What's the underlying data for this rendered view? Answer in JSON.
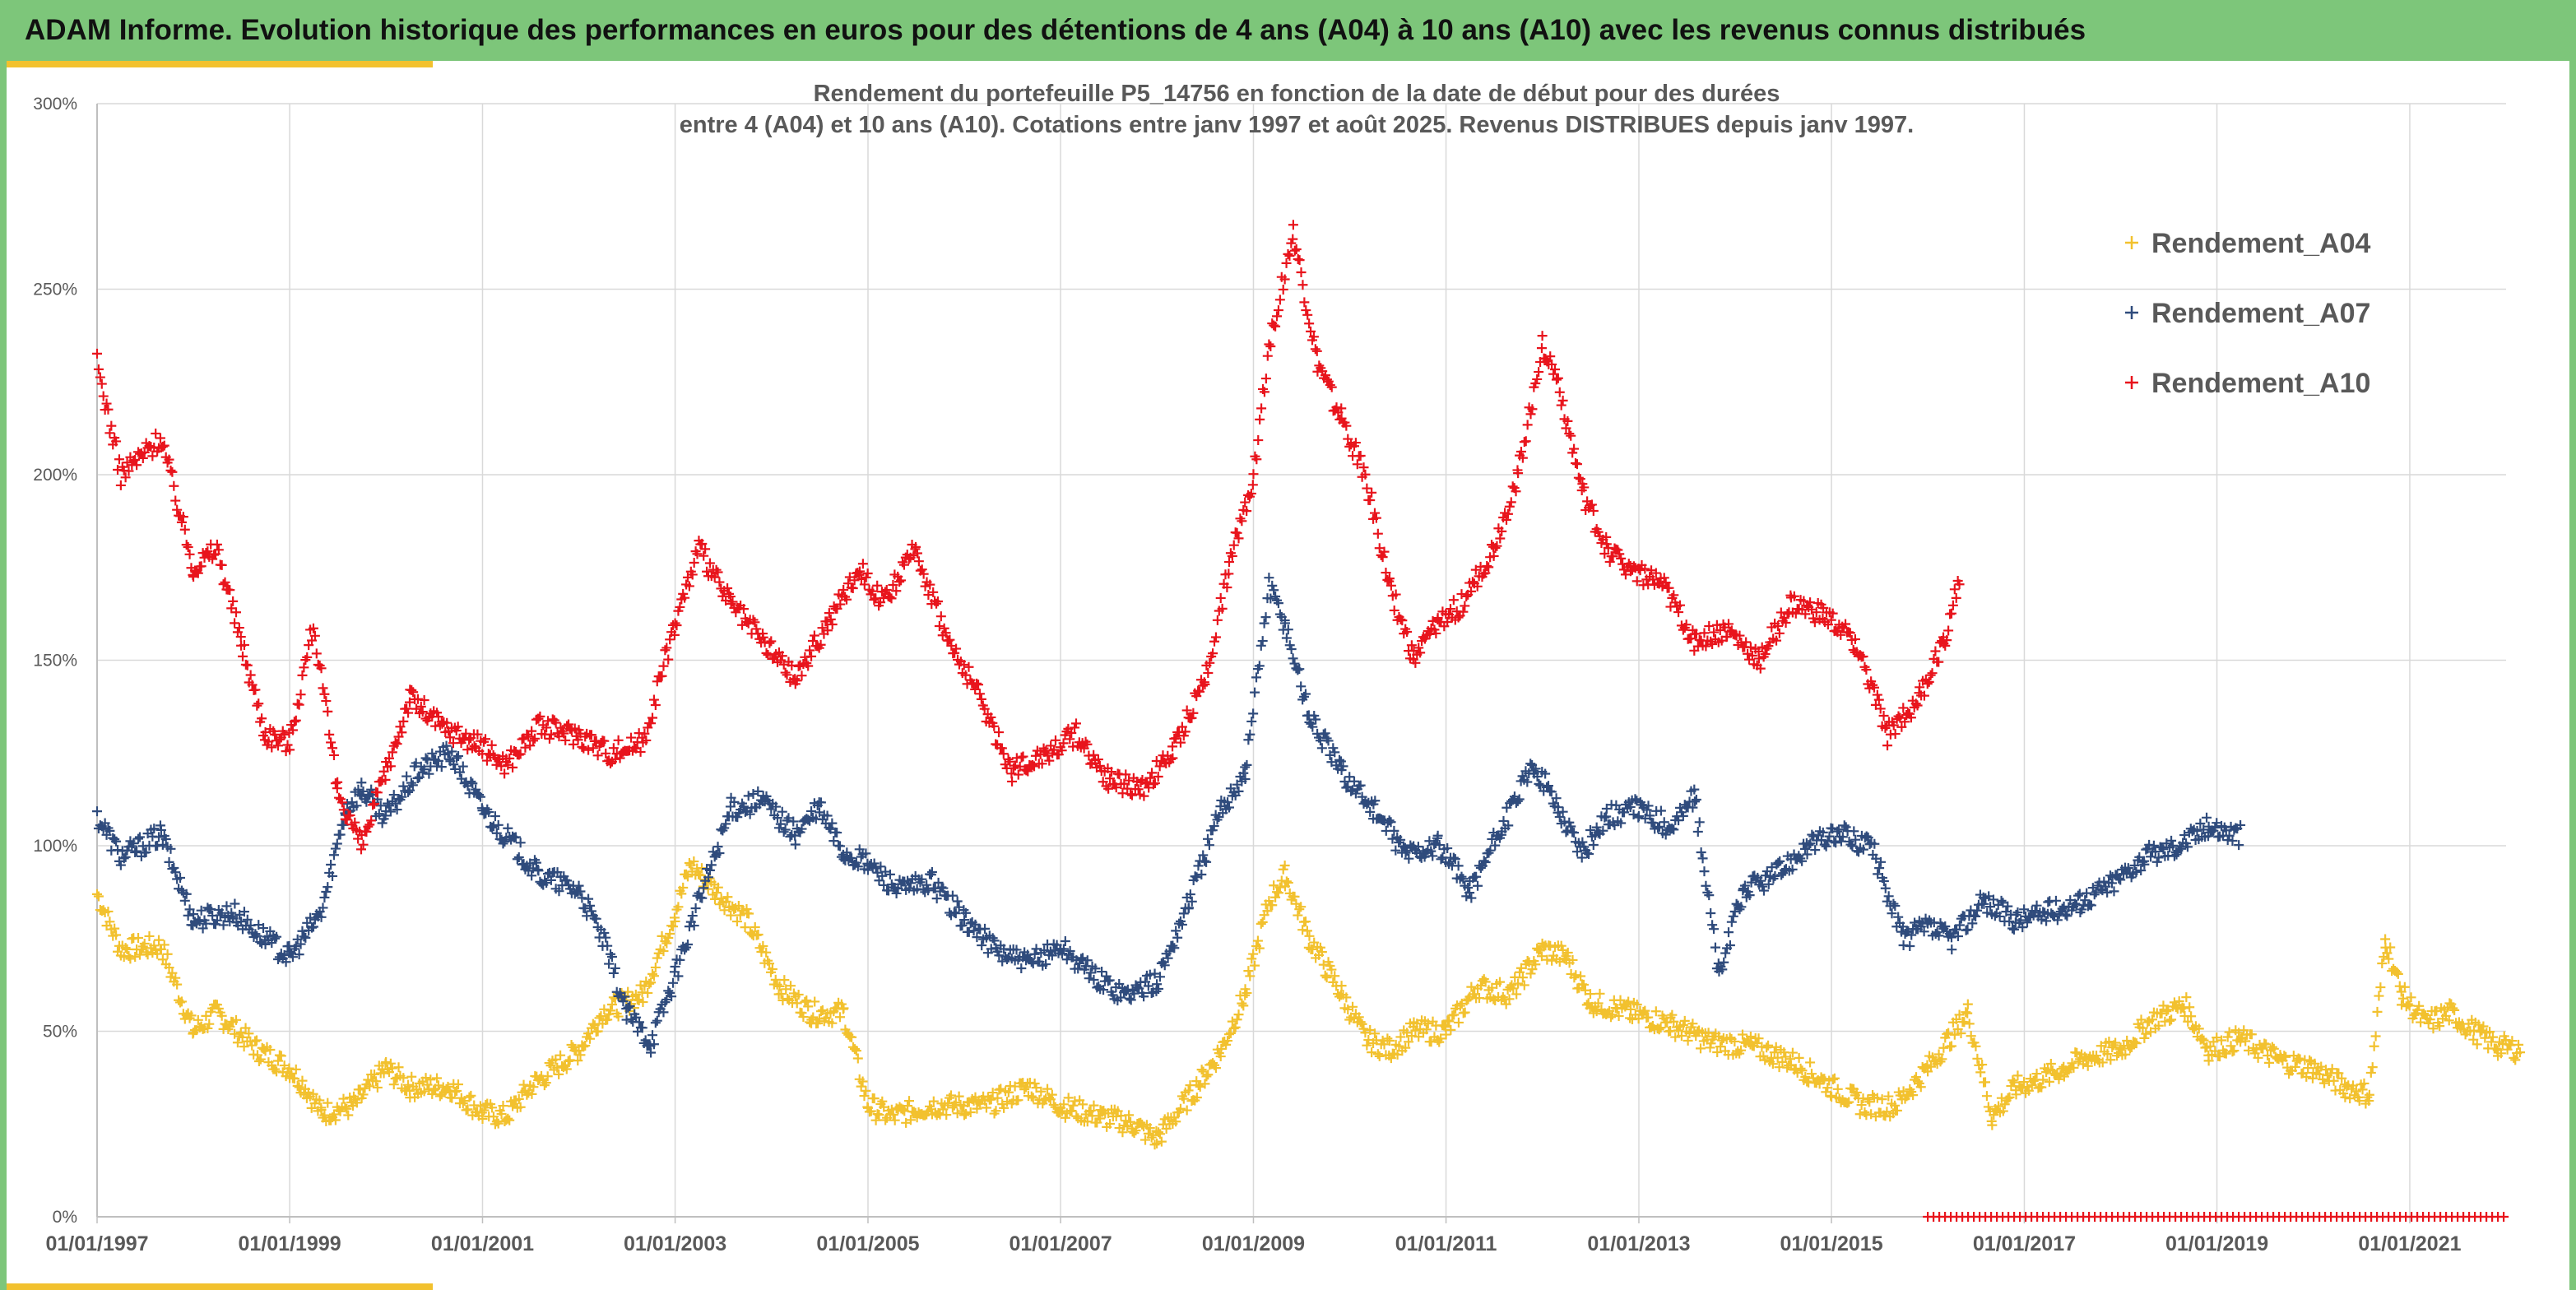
{
  "header": {
    "title": "ADAM Informe. Evolution historique des performances en euros pour des détentions de 4 ans (A04) à 10 ans (A10) avec les revenus connus distribués"
  },
  "colors": {
    "header_bg": "#7dc67a",
    "accent_bar": "#f2c12e",
    "gridline": "#d9d9d9",
    "text": "#595959"
  },
  "chart_data": {
    "type": "scatter",
    "title": "",
    "subtitle_lines": [
      "Rendement du portefeuille P5_14756 en fonction de la date de début pour des durées",
      "entre 4 (A04) et 10 ans (A10). Cotations entre janv 1997 et août 2025. Revenus DISTRIBUES depuis janv 1997."
    ],
    "xlabel": "",
    "ylabel": "",
    "x_tick_labels": [
      "01/01/1997",
      "01/01/1999",
      "01/01/2001",
      "01/01/2003",
      "01/01/2005",
      "01/01/2007",
      "01/01/2009",
      "01/01/2011",
      "01/01/2013",
      "01/01/2015",
      "01/01/2017",
      "01/01/2019",
      "01/01/2021"
    ],
    "xlim": [
      "1997-01-01",
      "2022-01-01"
    ],
    "y_tick_labels": [
      "0%",
      "50%",
      "100%",
      "150%",
      "200%",
      "250%",
      "300%"
    ],
    "ylim": [
      0,
      300
    ],
    "y_unit": "%",
    "grid": true,
    "legend_position": "top-right",
    "marker": "+",
    "series": [
      {
        "name": "Rendement_A04",
        "color": "#f2c12e",
        "points": [
          [
            "1997-01-01",
            87
          ],
          [
            "1997-04-01",
            72
          ],
          [
            "1997-09-01",
            73
          ],
          [
            "1998-01-01",
            50
          ],
          [
            "1998-04-01",
            55
          ],
          [
            "1998-09-01",
            45
          ],
          [
            "1999-01-01",
            40
          ],
          [
            "1999-03-01",
            35
          ],
          [
            "1999-05-01",
            28
          ],
          [
            "1999-09-01",
            30
          ],
          [
            "2000-01-01",
            40
          ],
          [
            "2000-04-01",
            35
          ],
          [
            "2000-09-01",
            35
          ],
          [
            "2001-01-01",
            28
          ],
          [
            "2001-04-01",
            27
          ],
          [
            "2001-07-01",
            35
          ],
          [
            "2002-01-01",
            45
          ],
          [
            "2002-04-01",
            55
          ],
          [
            "2002-09-01",
            60
          ],
          [
            "2003-01-01",
            82
          ],
          [
            "2003-03-01",
            95
          ],
          [
            "2003-06-01",
            88
          ],
          [
            "2003-10-01",
            80
          ],
          [
            "2004-02-01",
            62
          ],
          [
            "2004-06-01",
            55
          ],
          [
            "2004-10-01",
            55
          ],
          [
            "2005-01-01",
            30
          ],
          [
            "2005-04-01",
            27
          ],
          [
            "2005-09-01",
            30
          ],
          [
            "2006-01-01",
            30
          ],
          [
            "2006-04-01",
            30
          ],
          [
            "2006-09-01",
            35
          ],
          [
            "2007-01-01",
            30
          ],
          [
            "2007-06-01",
            27
          ],
          [
            "2007-10-01",
            25
          ],
          [
            "2008-01-01",
            21
          ],
          [
            "2008-06-01",
            35
          ],
          [
            "2008-09-01",
            45
          ],
          [
            "2008-12-01",
            60
          ],
          [
            "2009-03-01",
            85
          ],
          [
            "2009-05-01",
            92
          ],
          [
            "2009-08-01",
            75
          ],
          [
            "2009-12-01",
            60
          ],
          [
            "2010-03-01",
            48
          ],
          [
            "2010-06-01",
            45
          ],
          [
            "2010-09-01",
            50
          ],
          [
            "2011-01-01",
            50
          ],
          [
            "2011-05-01",
            62
          ],
          [
            "2011-09-01",
            60
          ],
          [
            "2012-01-01",
            72
          ],
          [
            "2012-04-01",
            70
          ],
          [
            "2012-07-01",
            58
          ],
          [
            "2012-12-01",
            55
          ],
          [
            "2013-05-01",
            52
          ],
          [
            "2013-10-01",
            47
          ],
          [
            "2014-03-01",
            46
          ],
          [
            "2014-08-01",
            42
          ],
          [
            "2015-01-01",
            35
          ],
          [
            "2015-05-01",
            30
          ],
          [
            "2015-09-01",
            30
          ],
          [
            "2016-01-01",
            40
          ],
          [
            "2016-06-01",
            55
          ],
          [
            "2016-09-01",
            27
          ],
          [
            "2016-12-01",
            35
          ],
          [
            "2017-03-01",
            37
          ],
          [
            "2017-06-01",
            40
          ],
          [
            "2017-09-01",
            43
          ],
          [
            "2018-01-01",
            45
          ],
          [
            "2018-05-01",
            53
          ],
          [
            "2018-09-01",
            57
          ],
          [
            "2018-12-01",
            45
          ],
          [
            "2019-04-01",
            48
          ],
          [
            "2019-09-01",
            42
          ],
          [
            "2020-01-01",
            40
          ],
          [
            "2020-05-01",
            35
          ],
          [
            "2020-08-01",
            33
          ],
          [
            "2020-10-01",
            75
          ],
          [
            "2020-12-01",
            60
          ],
          [
            "2021-03-01",
            52
          ],
          [
            "2021-06-01",
            55
          ],
          [
            "2021-09-01",
            50
          ],
          [
            "2021-12-01",
            46
          ],
          [
            "2022-03-01",
            45
          ]
        ]
      },
      {
        "name": "Rendement_A07",
        "color": "#2f4b7c",
        "points": [
          [
            "1997-01-01",
            108
          ],
          [
            "1997-04-01",
            97
          ],
          [
            "1997-09-01",
            103
          ],
          [
            "1998-01-01",
            80
          ],
          [
            "1998-06-01",
            82
          ],
          [
            "1998-10-01",
            75
          ],
          [
            "1999-01-01",
            70
          ],
          [
            "1999-05-01",
            82
          ],
          [
            "1999-08-01",
            110
          ],
          [
            "1999-10-01",
            115
          ],
          [
            "2000-01-01",
            108
          ],
          [
            "2000-05-01",
            120
          ],
          [
            "2000-09-01",
            125
          ],
          [
            "2001-01-01",
            110
          ],
          [
            "2001-05-01",
            100
          ],
          [
            "2001-08-01",
            92
          ],
          [
            "2002-01-01",
            88
          ],
          [
            "2002-04-01",
            75
          ],
          [
            "2002-07-01",
            55
          ],
          [
            "2002-10-01",
            47
          ],
          [
            "2003-01-01",
            65
          ],
          [
            "2003-04-01",
            85
          ],
          [
            "2003-08-01",
            110
          ],
          [
            "2003-12-01",
            112
          ],
          [
            "2004-04-01",
            103
          ],
          [
            "2004-07-01",
            110
          ],
          [
            "2004-10-01",
            98
          ],
          [
            "2005-01-01",
            95
          ],
          [
            "2005-05-01",
            88
          ],
          [
            "2005-09-01",
            90
          ],
          [
            "2006-01-01",
            80
          ],
          [
            "2006-05-01",
            72
          ],
          [
            "2006-09-01",
            68
          ],
          [
            "2007-01-01",
            73
          ],
          [
            "2007-05-01",
            65
          ],
          [
            "2007-09-01",
            60
          ],
          [
            "2008-01-01",
            63
          ],
          [
            "2008-05-01",
            85
          ],
          [
            "2008-09-01",
            110
          ],
          [
            "2008-12-01",
            120
          ],
          [
            "2009-03-01",
            170
          ],
          [
            "2009-05-01",
            160
          ],
          [
            "2009-08-01",
            135
          ],
          [
            "2009-12-01",
            120
          ],
          [
            "2010-04-01",
            110
          ],
          [
            "2010-08-01",
            98
          ],
          [
            "2010-12-01",
            100
          ],
          [
            "2011-04-01",
            88
          ],
          [
            "2011-08-01",
            105
          ],
          [
            "2011-12-01",
            122
          ],
          [
            "2012-03-01",
            110
          ],
          [
            "2012-06-01",
            98
          ],
          [
            "2012-09-01",
            108
          ],
          [
            "2013-01-01",
            110
          ],
          [
            "2013-05-01",
            105
          ],
          [
            "2013-08-01",
            113
          ],
          [
            "2013-11-01",
            65
          ],
          [
            "2014-02-01",
            88
          ],
          [
            "2014-06-01",
            92
          ],
          [
            "2014-10-01",
            100
          ],
          [
            "2015-02-01",
            103
          ],
          [
            "2015-06-01",
            100
          ],
          [
            "2015-10-01",
            75
          ],
          [
            "2016-01-01",
            78
          ],
          [
            "2016-04-01",
            75
          ],
          [
            "2016-08-01",
            85
          ],
          [
            "2016-12-01",
            80
          ],
          [
            "2017-04-01",
            82
          ],
          [
            "2017-08-01",
            85
          ],
          [
            "2017-12-01",
            90
          ],
          [
            "2018-04-01",
            97
          ],
          [
            "2018-08-01",
            100
          ],
          [
            "2018-12-01",
            105
          ],
          [
            "2019-04-01",
            103
          ]
        ]
      },
      {
        "name": "Rendement_A10",
        "color": "#e8141c",
        "points": [
          [
            "1997-01-01",
            230
          ],
          [
            "1997-04-01",
            200
          ],
          [
            "1997-09-01",
            210
          ],
          [
            "1998-01-01",
            175
          ],
          [
            "1998-04-01",
            180
          ],
          [
            "1998-07-01",
            155
          ],
          [
            "1998-10-01",
            130
          ],
          [
            "1999-01-01",
            128
          ],
          [
            "1999-04-01",
            160
          ],
          [
            "1999-07-01",
            115
          ],
          [
            "1999-10-01",
            100
          ],
          [
            "2000-01-01",
            120
          ],
          [
            "2000-04-01",
            140
          ],
          [
            "2000-08-01",
            132
          ],
          [
            "2000-12-01",
            128
          ],
          [
            "2001-04-01",
            122
          ],
          [
            "2001-08-01",
            132
          ],
          [
            "2002-01-01",
            130
          ],
          [
            "2002-05-01",
            125
          ],
          [
            "2002-09-01",
            128
          ],
          [
            "2003-01-01",
            160
          ],
          [
            "2003-04-01",
            180
          ],
          [
            "2003-08-01",
            165
          ],
          [
            "2003-12-01",
            155
          ],
          [
            "2004-04-01",
            145
          ],
          [
            "2004-08-01",
            160
          ],
          [
            "2004-12-01",
            175
          ],
          [
            "2005-03-01",
            165
          ],
          [
            "2005-07-01",
            180
          ],
          [
            "2005-11-01",
            155
          ],
          [
            "2006-03-01",
            140
          ],
          [
            "2006-07-01",
            120
          ],
          [
            "2006-11-01",
            125
          ],
          [
            "2007-03-01",
            130
          ],
          [
            "2007-07-01",
            118
          ],
          [
            "2007-11-01",
            115
          ],
          [
            "2008-03-01",
            125
          ],
          [
            "2008-07-01",
            145
          ],
          [
            "2008-10-01",
            175
          ],
          [
            "2009-01-01",
            200
          ],
          [
            "2009-03-01",
            235
          ],
          [
            "2009-06-01",
            265
          ],
          [
            "2009-09-01",
            230
          ],
          [
            "2009-12-01",
            215
          ],
          [
            "2010-03-01",
            200
          ],
          [
            "2010-06-01",
            170
          ],
          [
            "2010-09-01",
            150
          ],
          [
            "2010-12-01",
            160
          ],
          [
            "2011-03-01",
            165
          ],
          [
            "2011-07-01",
            180
          ],
          [
            "2011-10-01",
            200
          ],
          [
            "2012-01-01",
            235
          ],
          [
            "2012-03-01",
            225
          ],
          [
            "2012-06-01",
            195
          ],
          [
            "2012-09-01",
            180
          ],
          [
            "2012-12-01",
            175
          ],
          [
            "2013-04-01",
            170
          ],
          [
            "2013-08-01",
            155
          ],
          [
            "2013-12-01",
            158
          ],
          [
            "2014-04-01",
            150
          ],
          [
            "2014-08-01",
            165
          ],
          [
            "2014-12-01",
            162
          ],
          [
            "2015-04-01",
            155
          ],
          [
            "2015-08-01",
            130
          ],
          [
            "2015-12-01",
            140
          ],
          [
            "2016-03-01",
            155
          ],
          [
            "2016-05-01",
            172
          ]
        ]
      }
    ],
    "baseline_marker": {
      "x_start": "2016-01-01",
      "x_end": "2022-01-01",
      "y": 0,
      "color": "#e8141c"
    }
  }
}
